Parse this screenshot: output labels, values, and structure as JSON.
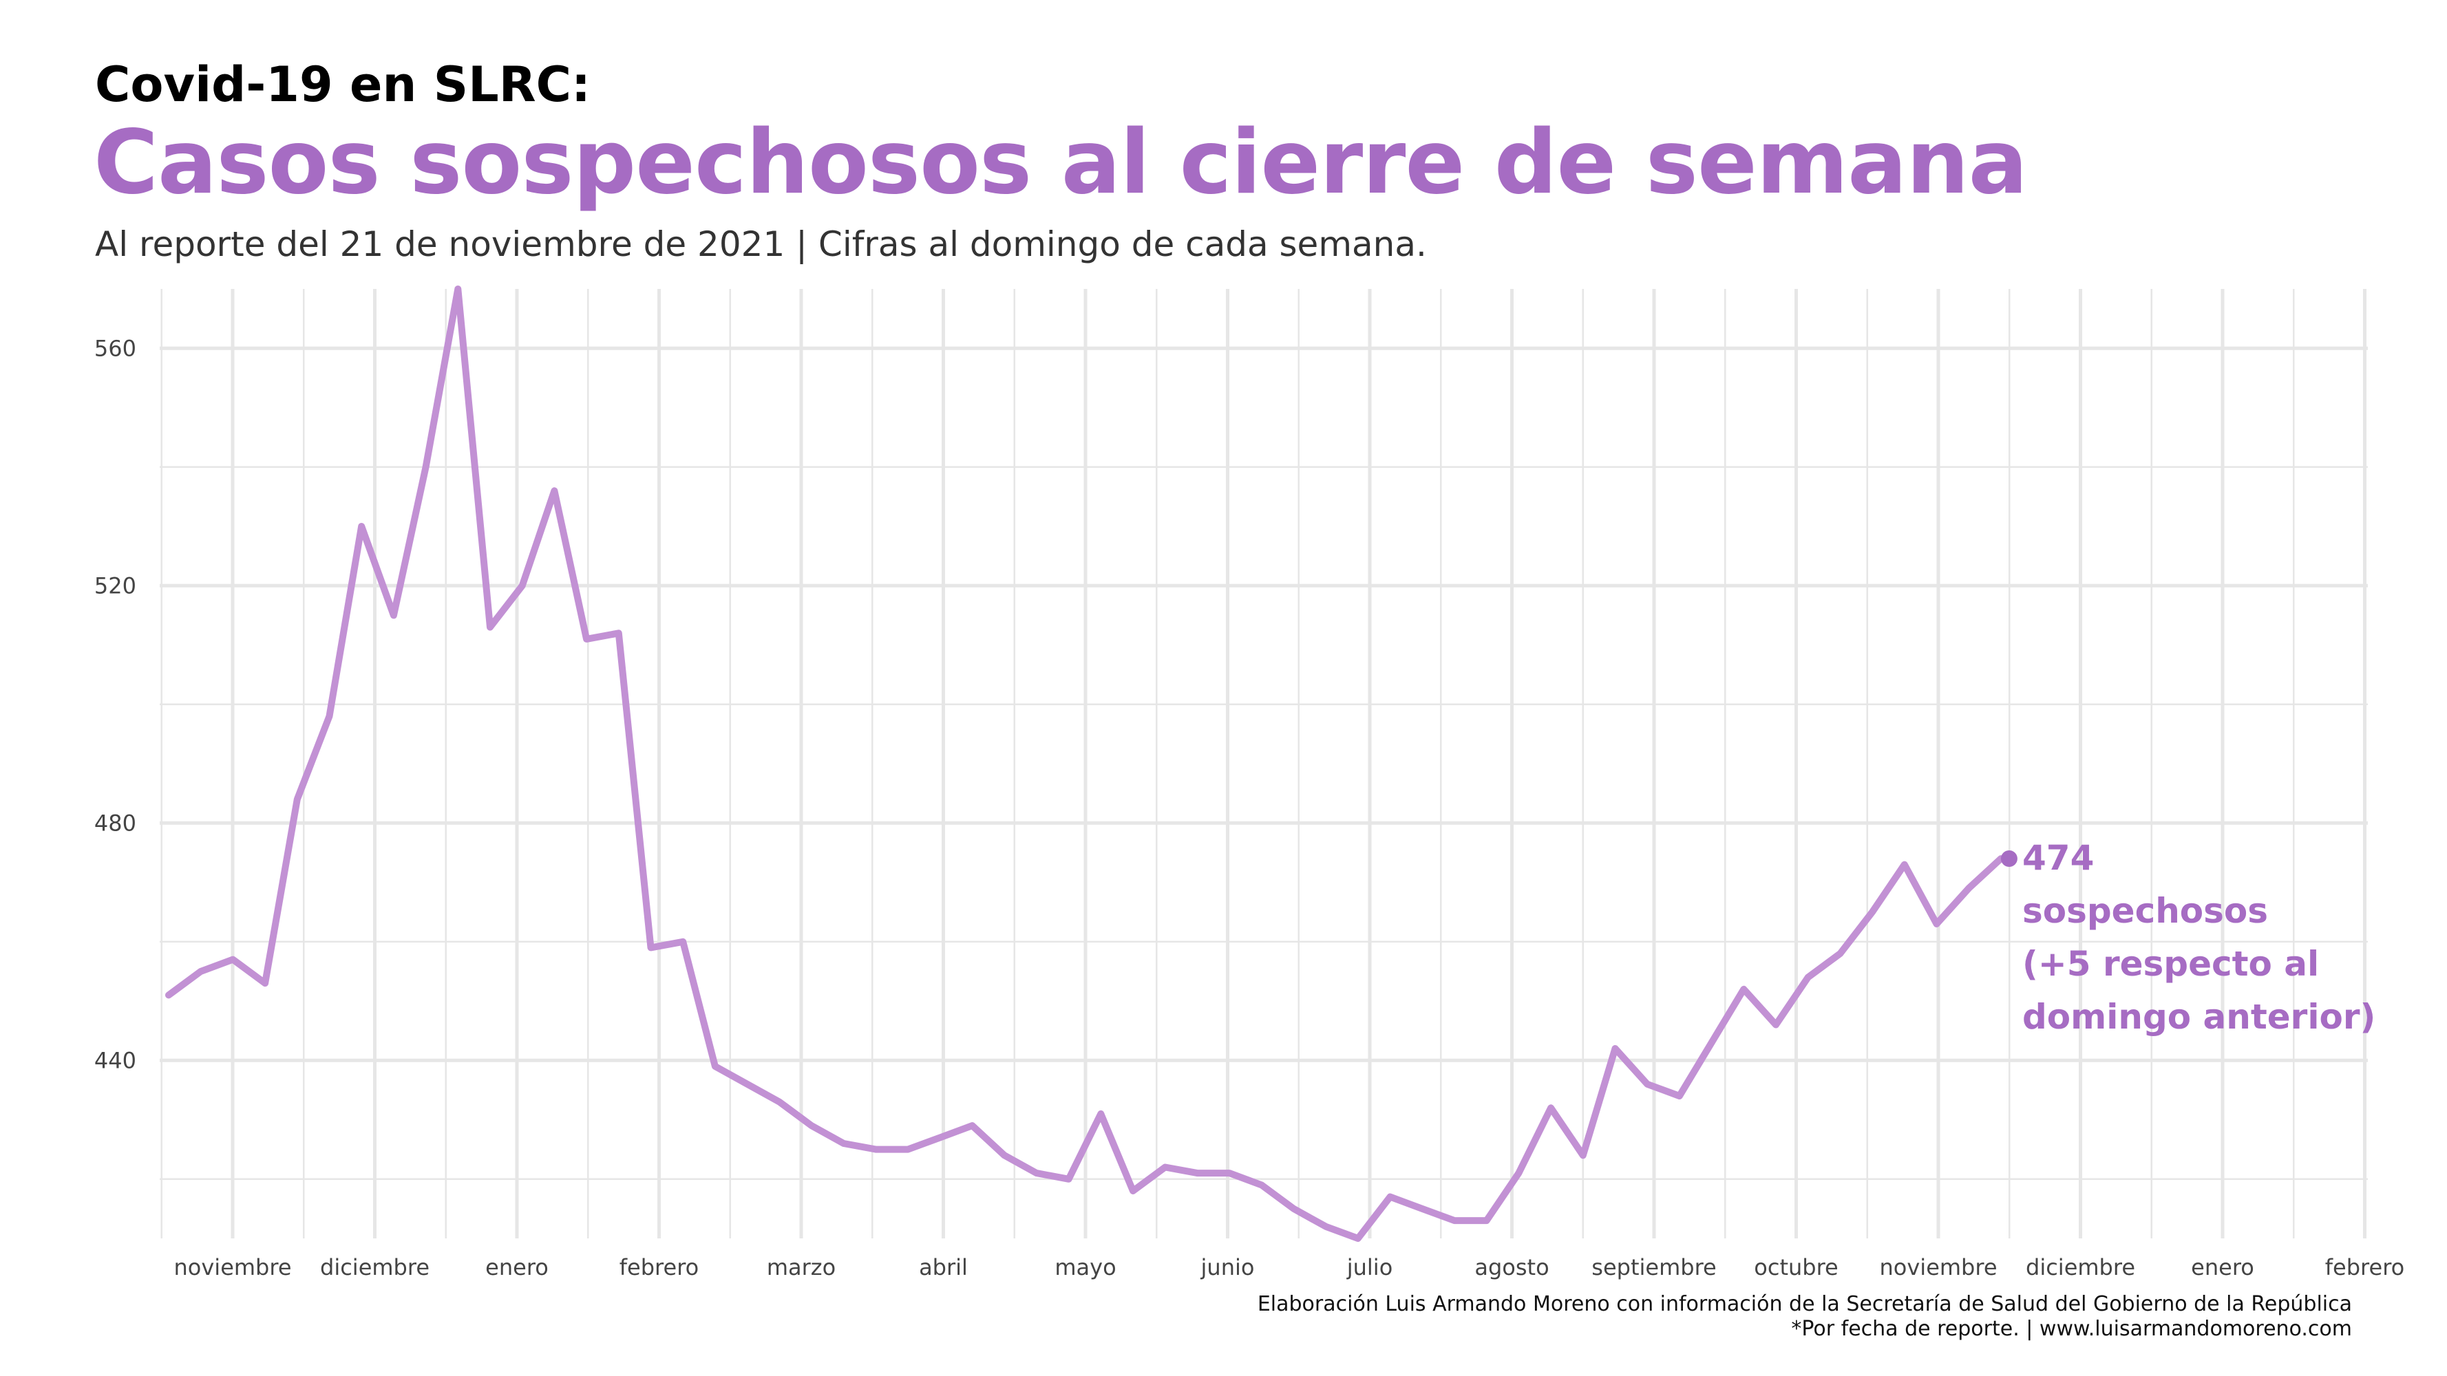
{
  "header": {
    "kicker": "Covid-19 en SLRC:",
    "title": "Casos sospechosos al cierre de semana",
    "subtitle": "Al reporte del 21 de noviembre de 2021  | Cifras al domingo de cada semana."
  },
  "caption": {
    "line1": "Elaboración Luis Armando Moreno con información de la Secretaría de Salud del Gobierno de la República",
    "line2": "*Por fecha de reporte. | www.luisarmandomoreno.com"
  },
  "colors": {
    "accent": "#a66cc3",
    "line": "#c291d4",
    "grid": "#e6e6e6",
    "tick_text": "#444444"
  },
  "chart_data": {
    "type": "line",
    "title": "Casos sospechosos al cierre de semana",
    "xlabel": "",
    "ylabel": "",
    "ylim": [
      410,
      570
    ],
    "yticks": [
      440,
      480,
      520,
      560
    ],
    "xticks": [
      "noviembre",
      "diciembre",
      "enero",
      "febrero",
      "marzo",
      "abril",
      "mayo",
      "junio",
      "julio",
      "agosto",
      "septiembre",
      "octubre",
      "noviembre",
      "diciembre",
      "enero",
      "febrero"
    ],
    "grid": true,
    "legend": "none",
    "series": [
      {
        "values": [
          451,
          455,
          457,
          453,
          484,
          498,
          530,
          515,
          540,
          570,
          513,
          520,
          536,
          511,
          512,
          459,
          460,
          439,
          436,
          433,
          429,
          426,
          425,
          425,
          427,
          429,
          424,
          421,
          420,
          431,
          418,
          422,
          421,
          421,
          419,
          415,
          412,
          410,
          417,
          415,
          413,
          413,
          421,
          432,
          424,
          442,
          436,
          434,
          443,
          452,
          446,
          454,
          458,
          465,
          473,
          463,
          469,
          474
        ]
      }
    ],
    "annotation": {
      "value_label": "474",
      "lines": [
        "sospechosos",
        "(+5 respecto al",
        "domingo anterior)"
      ]
    }
  }
}
